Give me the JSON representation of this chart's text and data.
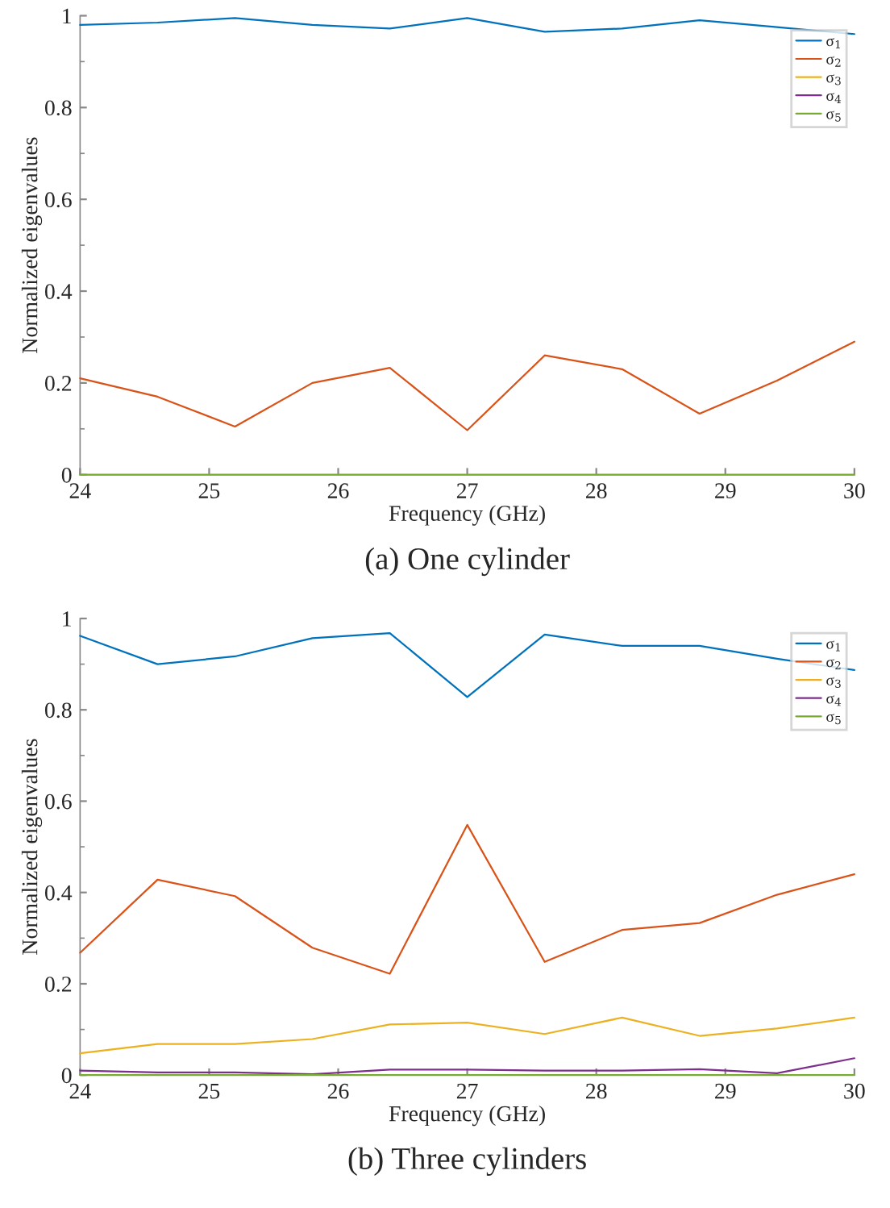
{
  "chart_data": [
    {
      "type": "line",
      "title": "(a) One cylinder",
      "xlabel": "Frequency (GHz)",
      "ylabel": "Normalized eigenvalues",
      "x": [
        24,
        24.6,
        25.2,
        25.8,
        26.4,
        27,
        27.6,
        28.2,
        28.8,
        29.4,
        30
      ],
      "xlim": [
        24,
        30
      ],
      "xticks": [
        24,
        25,
        26,
        27,
        28,
        29,
        30
      ],
      "ylim": [
        0,
        1
      ],
      "yticks": [
        0,
        {
          "value": 0.2,
          "label": "0.2"
        },
        {
          "value": 0.4,
          "label": "0.4"
        },
        {
          "value": 0.6,
          "label": "0.6"
        },
        {
          "value": 0.8,
          "label": "0.8"
        },
        1
      ],
      "grid": false,
      "legend": "top right",
      "marker": "none",
      "line_style": "solid",
      "series": [
        {
          "name": "σ$_{1}$",
          "color": "#0072bd",
          "values": [
            0.98,
            0.985,
            0.995,
            0.98,
            0.972,
            0.995,
            0.965,
            0.972,
            0.99,
            0.975,
            0.96
          ]
        },
        {
          "name": "σ$_{2}$",
          "color": "#d95319",
          "values": [
            0.21,
            0.17,
            0.105,
            0.2,
            0.233,
            0.097,
            0.26,
            0.23,
            0.133,
            0.205,
            0.29
          ]
        },
        {
          "name": "σ$_{3}$",
          "color": "#edb120",
          "values": [
            null,
            null,
            null,
            null,
            null,
            null,
            null,
            null,
            null,
            null,
            null
          ]
        },
        {
          "name": "σ$_{4}$",
          "color": "#7e2f8e",
          "values": [
            null,
            null,
            null,
            null,
            null,
            null,
            null,
            null,
            null,
            null,
            null
          ]
        },
        {
          "name": "σ$_{5}$",
          "color": "#77ac30",
          "values": [
            0,
            0,
            0,
            0,
            0,
            0,
            0,
            0,
            0,
            0,
            0
          ]
        }
      ]
    },
    {
      "type": "line",
      "title": "(b) Three cylinders",
      "xlabel": "Frequency (GHz)",
      "ylabel": "Normalized eigenvalues",
      "x": [
        24,
        24.6,
        25.2,
        25.8,
        26.4,
        27,
        27.6,
        28.2,
        28.8,
        29.4,
        30
      ],
      "xlim": [
        24,
        30
      ],
      "xticks": [
        24,
        25,
        26,
        27,
        28,
        29,
        30
      ],
      "ylim": [
        0,
        1
      ],
      "yticks": [
        0,
        {
          "value": 0.2,
          "label": "0.2"
        },
        {
          "value": 0.4,
          "label": "0.4"
        },
        {
          "value": 0.6,
          "label": "0.6"
        },
        {
          "value": 0.8,
          "label": "0.8"
        },
        1
      ],
      "grid": false,
      "legend": "top right",
      "marker": "none",
      "line_style": "solid",
      "series": [
        {
          "name": "σ$_{1}$",
          "color": "#0072bd",
          "values": [
            0.962,
            0.9,
            0.917,
            0.957,
            0.968,
            0.828,
            0.965,
            0.94,
            0.94,
            0.912,
            0.887
          ]
        },
        {
          "name": "σ$_{2}$",
          "color": "#d95319",
          "values": [
            0.268,
            0.428,
            0.392,
            0.279,
            0.222,
            0.548,
            0.248,
            0.318,
            0.333,
            0.395,
            0.44
          ]
        },
        {
          "name": "σ$_{3}$",
          "color": "#edb120",
          "values": [
            0.048,
            0.068,
            0.068,
            0.079,
            0.111,
            0.115,
            0.09,
            0.126,
            0.086,
            0.102,
            0.126
          ]
        },
        {
          "name": "σ$_{4}$",
          "color": "#7e2f8e",
          "values": [
            0.01,
            0.006,
            0.006,
            0.002,
            0.012,
            0.012,
            0.01,
            0.01,
            0.013,
            0.004,
            0.037
          ]
        },
        {
          "name": "σ$_{5}$",
          "color": "#77ac30",
          "values": [
            0,
            0,
            0,
            0,
            0,
            0,
            0,
            0,
            0,
            0,
            0
          ]
        }
      ]
    }
  ]
}
